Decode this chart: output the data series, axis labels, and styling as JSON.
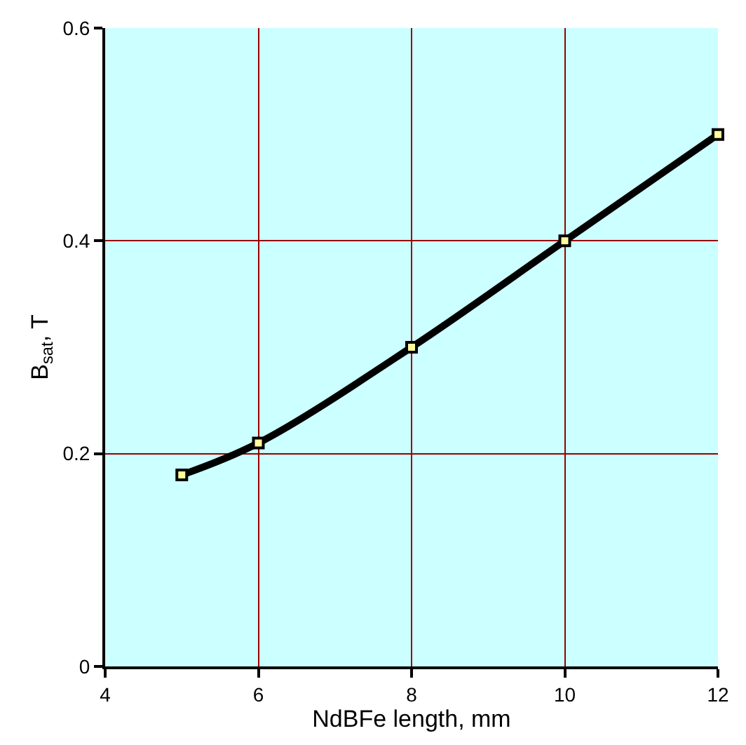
{
  "chart_data": {
    "type": "line",
    "xlabel": "NdBFe length, mm",
    "ylabel": "B$_{sat}$, T",
    "x": [
      5,
      6,
      8,
      10,
      12
    ],
    "series": [
      {
        "color": "#000000",
        "values": [
          0.18,
          0.21,
          0.3,
          0.4,
          0.5
        ]
      }
    ],
    "xlim": [
      4,
      12
    ],
    "xticks": [
      4,
      6,
      8,
      10,
      12
    ],
    "ylim": [
      0,
      0.6
    ],
    "yticks": [
      0,
      0.2,
      0.4,
      0.6
    ],
    "grid": true,
    "marker": "square",
    "line_style": "solid"
  }
}
